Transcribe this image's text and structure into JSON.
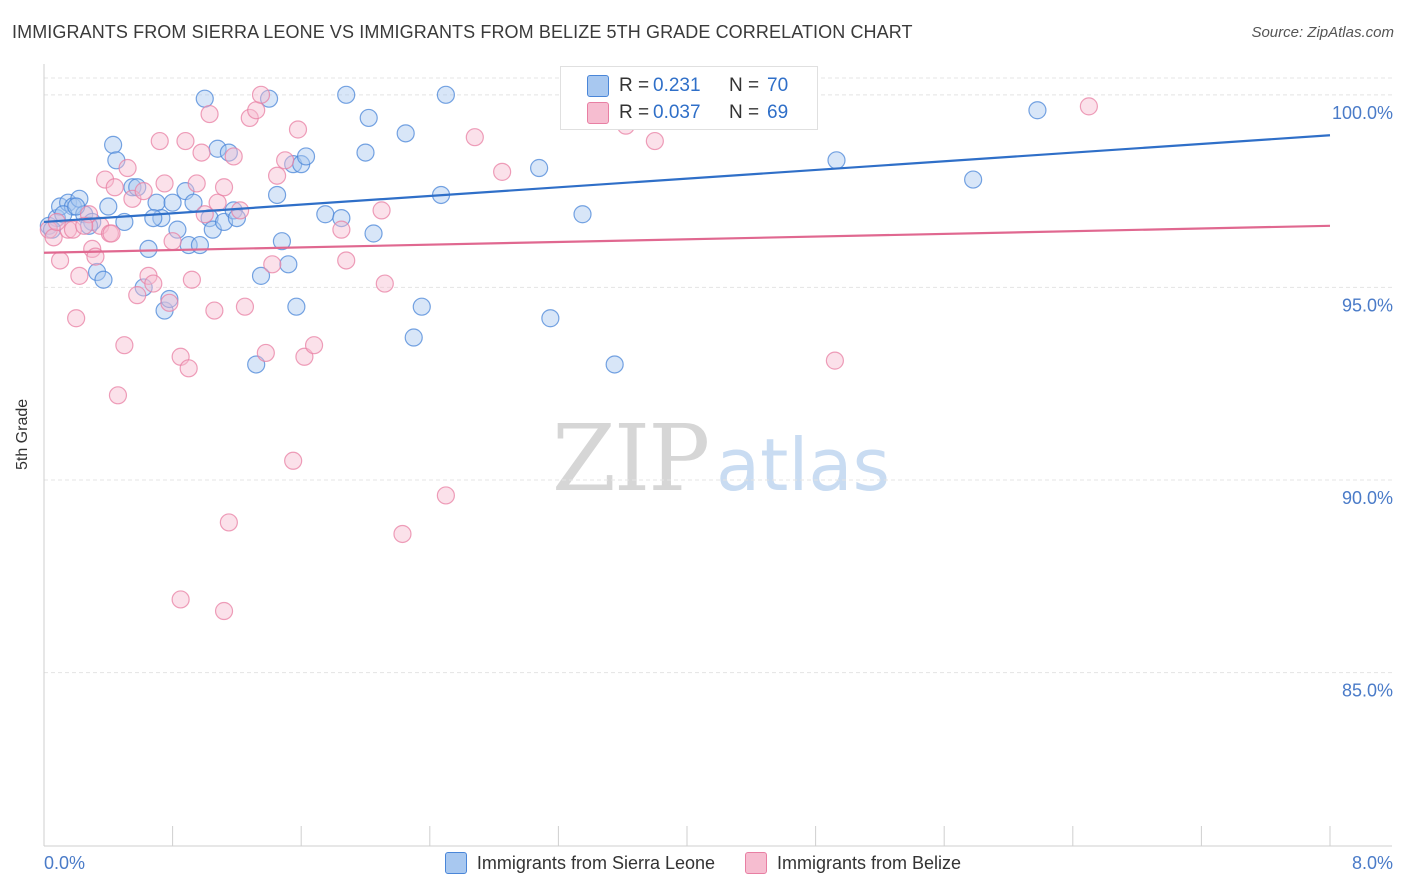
{
  "header": {
    "title": "IMMIGRANTS FROM SIERRA LEONE VS IMMIGRANTS FROM BELIZE 5TH GRADE CORRELATION CHART",
    "source": "Source: ZipAtlas.com"
  },
  "watermark": {
    "zip": "ZIP",
    "atlas": "atlas"
  },
  "stats": {
    "blue": {
      "r_label": "R =",
      "r_value": "0.231",
      "n_label": "N =",
      "n_value": "70"
    },
    "pink": {
      "r_label": "R =",
      "r_value": "0.037",
      "n_label": "N =",
      "n_value": "69"
    }
  },
  "colors": {
    "blue": "#4a86d8",
    "blue_fill": "#a8c8f0",
    "blue_line": "#2f6fc8",
    "pink": "#e87fa3",
    "pink_fill": "#f6bdd0",
    "pink_line": "#e06890",
    "axis_text": "#4a7bc8",
    "grid": "#e4e4e4"
  },
  "chart_data": {
    "type": "scatter",
    "title": "IMMIGRANTS FROM SIERRA LEONE VS IMMIGRANTS FROM BELIZE 5TH GRADE CORRELATION CHART",
    "xlabel": "",
    "ylabel": "5th Grade",
    "xlim": [
      0.0,
      8.0
    ],
    "ylim": [
      80.5,
      100.8
    ],
    "x_tick_labels": [
      "0.0%",
      "8.0%"
    ],
    "y_ticks": [
      85.0,
      90.0,
      95.0,
      100.0
    ],
    "y_tick_labels": [
      "85.0%",
      "90.0%",
      "95.0%",
      "100.0%"
    ],
    "series": [
      {
        "name": "Immigrants from Sierra Leone",
        "color": "blue",
        "trend": [
          [
            0.0,
            96.7
          ],
          [
            8.0,
            98.95
          ]
        ],
        "points": [
          [
            0.03,
            96.6
          ],
          [
            0.08,
            96.8
          ],
          [
            0.1,
            97.1
          ],
          [
            0.15,
            97.2
          ],
          [
            0.18,
            97.1
          ],
          [
            0.22,
            97.3
          ],
          [
            0.25,
            96.9
          ],
          [
            0.3,
            96.7
          ],
          [
            0.33,
            95.4
          ],
          [
            0.37,
            95.2
          ],
          [
            0.4,
            97.1
          ],
          [
            0.43,
            98.7
          ],
          [
            0.45,
            98.3
          ],
          [
            0.5,
            96.7
          ],
          [
            0.55,
            97.6
          ],
          [
            0.58,
            97.6
          ],
          [
            0.62,
            95.0
          ],
          [
            0.65,
            96.0
          ],
          [
            0.7,
            97.2
          ],
          [
            0.73,
            96.8
          ],
          [
            0.75,
            94.4
          ],
          [
            0.78,
            94.7
          ],
          [
            0.8,
            97.2
          ],
          [
            0.83,
            96.5
          ],
          [
            0.88,
            97.5
          ],
          [
            0.9,
            96.1
          ],
          [
            0.93,
            97.2
          ],
          [
            0.97,
            96.1
          ],
          [
            1.0,
            99.9
          ],
          [
            1.03,
            96.8
          ],
          [
            1.05,
            96.5
          ],
          [
            1.08,
            98.6
          ],
          [
            1.12,
            96.7
          ],
          [
            1.15,
            98.5
          ],
          [
            1.18,
            97.0
          ],
          [
            1.2,
            96.8
          ],
          [
            1.32,
            93.0
          ],
          [
            1.35,
            95.3
          ],
          [
            1.4,
            99.9
          ],
          [
            1.45,
            97.4
          ],
          [
            1.48,
            96.2
          ],
          [
            1.52,
            95.6
          ],
          [
            1.55,
            98.2
          ],
          [
            1.57,
            94.5
          ],
          [
            1.6,
            98.2
          ],
          [
            1.63,
            98.4
          ],
          [
            1.75,
            96.9
          ],
          [
            1.85,
            96.8
          ],
          [
            1.88,
            100.0
          ],
          [
            2.0,
            98.5
          ],
          [
            2.02,
            99.4
          ],
          [
            2.05,
            96.4
          ],
          [
            2.25,
            99.0
          ],
          [
            2.3,
            93.7
          ],
          [
            2.35,
            94.5
          ],
          [
            2.47,
            97.4
          ],
          [
            2.5,
            100.0
          ],
          [
            3.08,
            98.1
          ],
          [
            3.15,
            94.2
          ],
          [
            3.35,
            96.9
          ],
          [
            3.5,
            100.0
          ],
          [
            3.55,
            93.0
          ],
          [
            4.93,
            98.3
          ],
          [
            5.78,
            97.8
          ],
          [
            6.18,
            99.6
          ],
          [
            0.05,
            96.5
          ],
          [
            0.12,
            96.9
          ],
          [
            0.28,
            96.6
          ],
          [
            0.68,
            96.8
          ],
          [
            0.2,
            97.1
          ]
        ]
      },
      {
        "name": "Immigrants from Belize",
        "color": "pink",
        "trend": [
          [
            0.0,
            95.9
          ],
          [
            8.0,
            96.6
          ]
        ],
        "points": [
          [
            0.03,
            96.5
          ],
          [
            0.06,
            96.3
          ],
          [
            0.1,
            95.7
          ],
          [
            0.15,
            96.5
          ],
          [
            0.2,
            94.2
          ],
          [
            0.22,
            95.3
          ],
          [
            0.28,
            96.9
          ],
          [
            0.3,
            96.0
          ],
          [
            0.32,
            95.8
          ],
          [
            0.35,
            96.6
          ],
          [
            0.38,
            97.8
          ],
          [
            0.41,
            96.4
          ],
          [
            0.44,
            97.6
          ],
          [
            0.46,
            92.2
          ],
          [
            0.5,
            93.5
          ],
          [
            0.52,
            98.1
          ],
          [
            0.55,
            97.3
          ],
          [
            0.58,
            94.8
          ],
          [
            0.62,
            97.5
          ],
          [
            0.65,
            95.3
          ],
          [
            0.68,
            95.1
          ],
          [
            0.72,
            98.8
          ],
          [
            0.75,
            97.7
          ],
          [
            0.78,
            94.6
          ],
          [
            0.8,
            96.2
          ],
          [
            0.85,
            93.2
          ],
          [
            0.88,
            98.8
          ],
          [
            0.9,
            92.9
          ],
          [
            0.92,
            95.2
          ],
          [
            0.95,
            97.7
          ],
          [
            0.98,
            98.5
          ],
          [
            1.0,
            96.9
          ],
          [
            1.03,
            99.5
          ],
          [
            1.06,
            94.4
          ],
          [
            1.08,
            97.2
          ],
          [
            1.12,
            97.6
          ],
          [
            1.15,
            88.9
          ],
          [
            1.18,
            98.4
          ],
          [
            1.22,
            97.0
          ],
          [
            1.25,
            94.5
          ],
          [
            1.28,
            99.4
          ],
          [
            1.32,
            99.6
          ],
          [
            1.38,
            93.3
          ],
          [
            1.42,
            95.6
          ],
          [
            1.45,
            97.9
          ],
          [
            1.5,
            98.3
          ],
          [
            1.55,
            90.5
          ],
          [
            1.58,
            99.1
          ],
          [
            1.62,
            93.2
          ],
          [
            1.68,
            93.5
          ],
          [
            1.85,
            96.5
          ],
          [
            1.88,
            95.7
          ],
          [
            2.1,
            97.0
          ],
          [
            2.12,
            95.1
          ],
          [
            2.23,
            88.6
          ],
          [
            2.5,
            89.6
          ],
          [
            2.68,
            98.9
          ],
          [
            2.85,
            98.0
          ],
          [
            3.62,
            99.2
          ],
          [
            3.8,
            98.8
          ],
          [
            4.92,
            93.1
          ],
          [
            6.5,
            99.7
          ],
          [
            0.85,
            86.9
          ],
          [
            1.12,
            86.6
          ],
          [
            0.08,
            96.7
          ],
          [
            0.18,
            96.5
          ],
          [
            0.25,
            96.6
          ],
          [
            0.42,
            96.4
          ],
          [
            1.35,
            100.0
          ]
        ]
      }
    ]
  },
  "legend": {
    "series_a": "Immigrants from Sierra Leone",
    "series_b": "Immigrants from Belize"
  }
}
